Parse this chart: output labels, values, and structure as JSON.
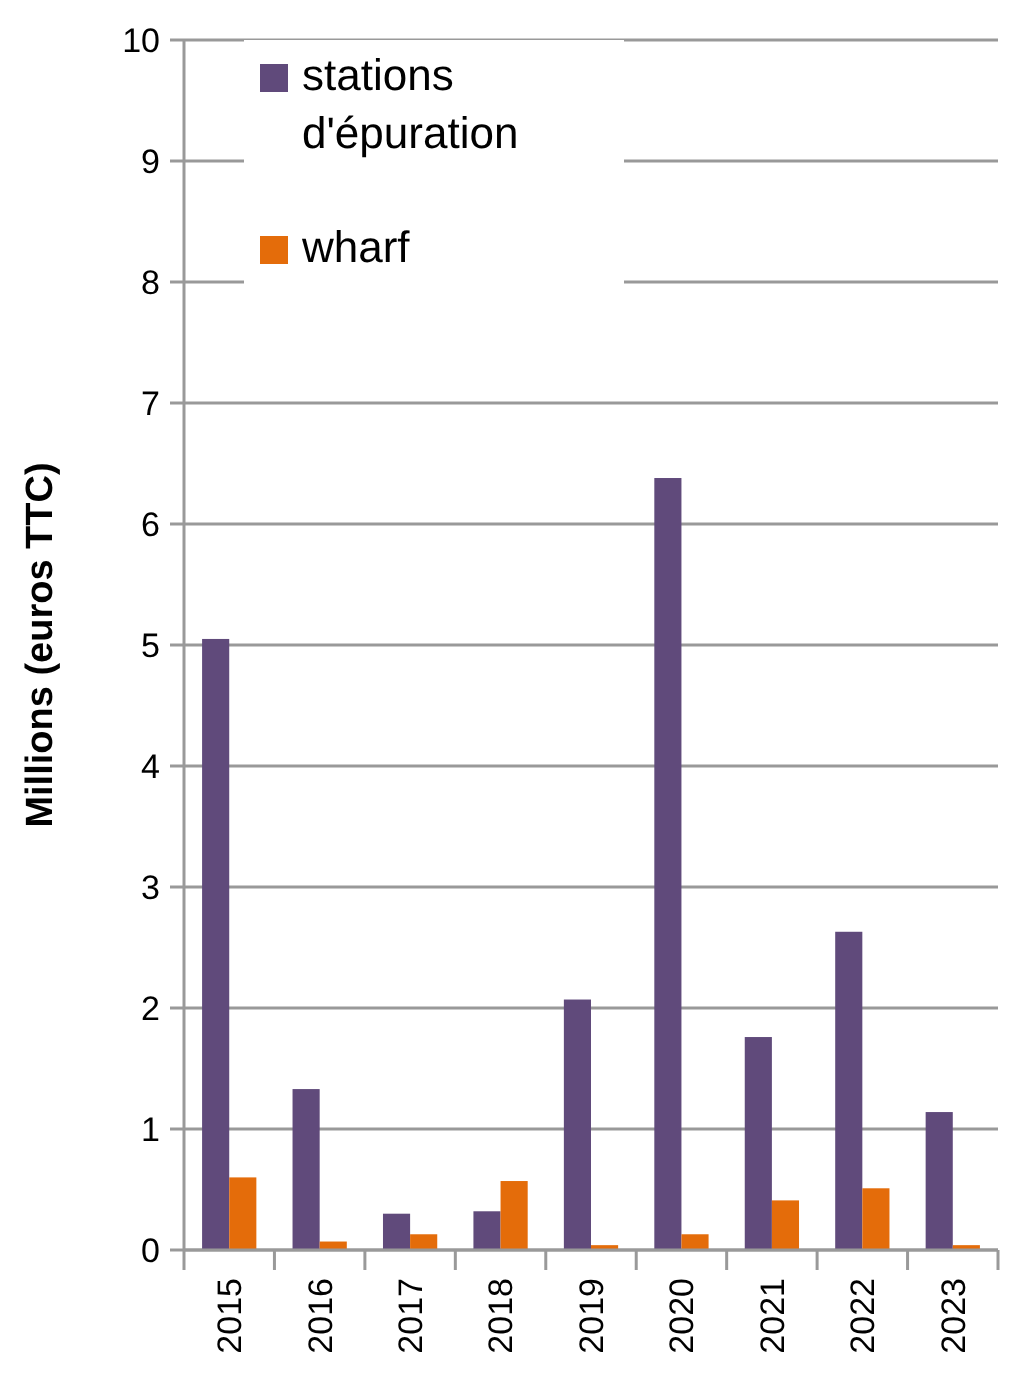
{
  "chart_data": {
    "type": "bar",
    "ylabel": "Millions (euros TTC)",
    "categories": [
      "2015",
      "2016",
      "2017",
      "2018",
      "2019",
      "2020",
      "2021",
      "2022",
      "2023"
    ],
    "series": [
      {
        "name": "stations d'épuration",
        "color": "#604a7b",
        "values": [
          5.05,
          1.33,
          0.3,
          0.32,
          2.07,
          6.38,
          1.76,
          2.63,
          1.14
        ]
      },
      {
        "name": "wharf",
        "color": "#e46c0a",
        "values": [
          0.6,
          0.07,
          0.13,
          0.57,
          0.04,
          0.13,
          0.41,
          0.51,
          0.04
        ]
      }
    ],
    "ylim": [
      0,
      10
    ],
    "yticks": [
      0,
      1,
      2,
      3,
      4,
      5,
      6,
      7,
      8,
      9,
      10
    ],
    "grid": "y",
    "legend": "top left"
  }
}
